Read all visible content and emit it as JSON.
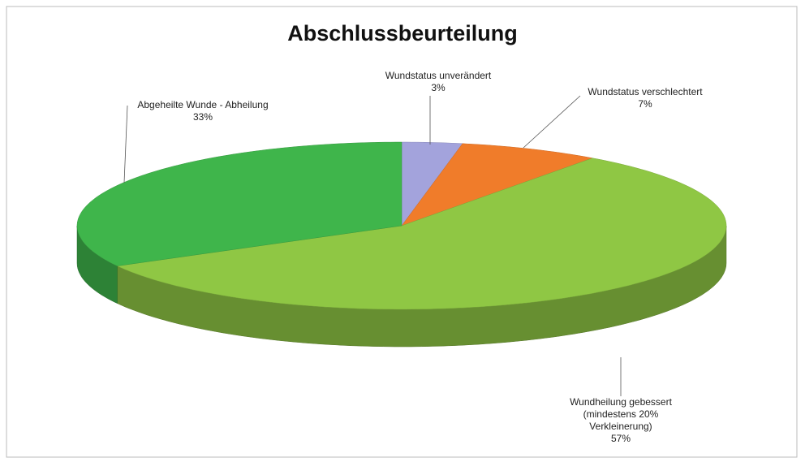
{
  "chart_data": {
    "type": "pie3d",
    "title": "Abschlussbeurteilung",
    "categories": [
      "Wundstatus unverändert",
      "Wundstatus verschlechtert",
      "Wundheilung gebessert (mindestens 20% Verkleinerung)",
      "Abgeheilte Wunde - Abheilung"
    ],
    "values": [
      3,
      7,
      57,
      33
    ],
    "value_labels": [
      "3%",
      "7%",
      "57%",
      "33%"
    ],
    "colors": [
      "#a3a3dc",
      "#f07c2a",
      "#8fc744",
      "#3fb54b"
    ]
  }
}
